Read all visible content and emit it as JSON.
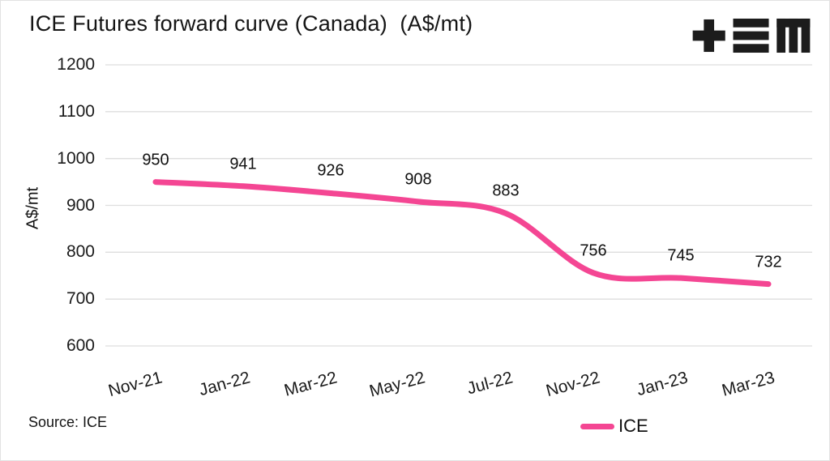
{
  "header": {
    "title": "ICE Futures forward curve (Canada)  (A$/mt)"
  },
  "logo": {
    "name": "tem-logo"
  },
  "source": {
    "label": "Source: ICE"
  },
  "chart_data": {
    "type": "line",
    "title": "ICE Futures forward curve (Canada) (A$/mt)",
    "categories": [
      "Nov-21",
      "Jan-22",
      "Mar-22",
      "May-22",
      "Jul-22",
      "Nov-22",
      "Jan-23",
      "Mar-23"
    ],
    "series": [
      {
        "name": "ICE",
        "color": "#F44693",
        "values": [
          950,
          941,
          926,
          908,
          883,
          756,
          745,
          732
        ]
      }
    ],
    "data_labels": [
      950,
      941,
      926,
      908,
      883,
      756,
      745,
      732
    ],
    "xlabel": "",
    "ylabel": "A$/mt",
    "ylim": [
      600,
      1200
    ],
    "yticks": [
      1200,
      1100,
      1000,
      900,
      800,
      700,
      600
    ],
    "grid": true,
    "legend_position": "bottom-right"
  },
  "colors": {
    "accent_pink": "#F44693",
    "grid": "#DEDEDE",
    "text": "#141414",
    "logo_black": "#1C1C1C",
    "background": "#FFFFFF"
  }
}
